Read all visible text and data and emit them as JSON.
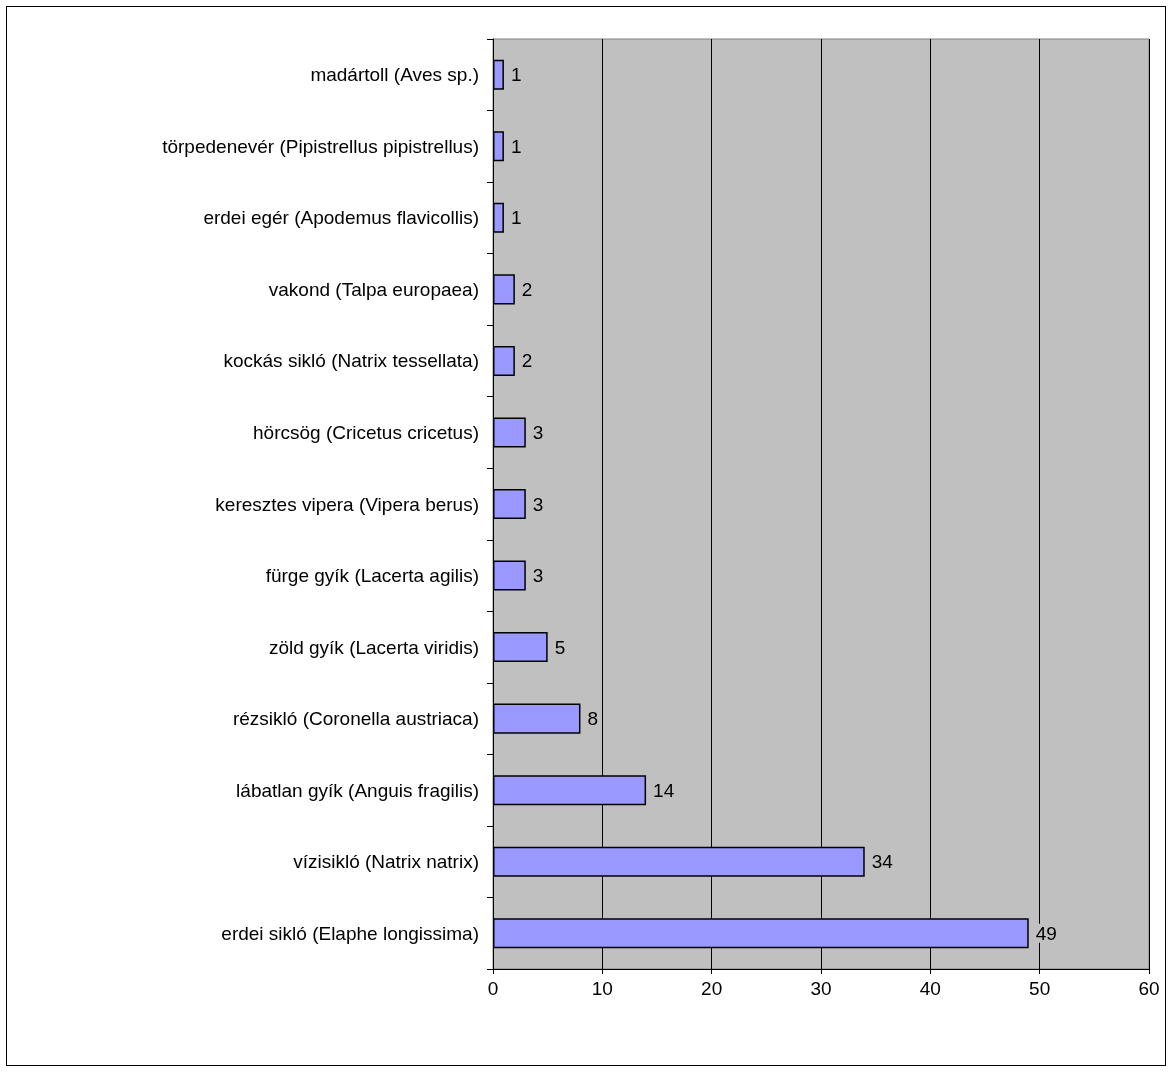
{
  "chart_data": {
    "type": "bar",
    "orientation": "horizontal",
    "categories": [
      "madártoll (Aves sp.)",
      "törpedenevér (Pipistrellus pipistrellus)",
      "erdei egér (Apodemus flavicollis)",
      "vakond (Talpa europaea)",
      "kockás sikló (Natrix tessellata)",
      "hörcsög (Cricetus cricetus)",
      "keresztes vipera (Vipera berus)",
      "fürge gyík (Lacerta agilis)",
      "zöld gyík (Lacerta viridis)",
      "rézsikló (Coronella austriaca)",
      "lábatlan gyík (Anguis fragilis)",
      "vízisikló (Natrix natrix)",
      "erdei sikló (Elaphe longissima)"
    ],
    "values": [
      1,
      1,
      1,
      2,
      2,
      3,
      3,
      3,
      5,
      8,
      14,
      34,
      49
    ],
    "color": "#9999ff",
    "xlim": [
      0,
      60
    ],
    "xticks": [
      0,
      10,
      20,
      30,
      40,
      50,
      60
    ],
    "grid": "x",
    "data_labels": true
  }
}
